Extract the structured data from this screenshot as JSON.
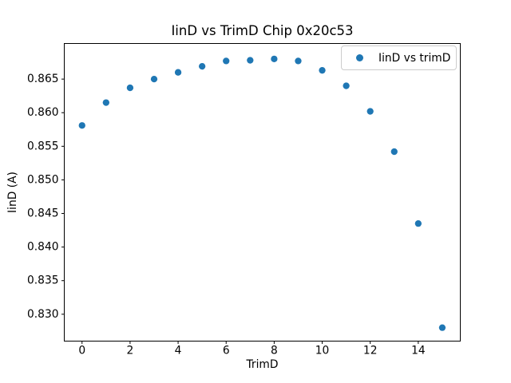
{
  "figure": {
    "background": "#ffffff",
    "axis_color": "#000000",
    "tick_label_color": "#000000"
  },
  "chart_data": {
    "type": "scatter",
    "title": "IinD vs TrimD Chip 0x20c53",
    "xlabel": "TrimD",
    "ylabel": "IinD (A)",
    "legend": {
      "label": "IinD vs trimD",
      "position": "upper right",
      "marker": "circle-icon",
      "marker_color": "#1f77b4"
    },
    "series": [
      {
        "name": "IinD vs trimD",
        "color": "#1f77b4",
        "marker": "circle",
        "x": [
          0,
          1,
          2,
          3,
          4,
          5,
          6,
          7,
          8,
          9,
          10,
          11,
          12,
          13,
          14,
          15
        ],
        "y": [
          0.8581,
          0.8615,
          0.8637,
          0.865,
          0.866,
          0.8669,
          0.8677,
          0.8678,
          0.868,
          0.8677,
          0.8663,
          0.864,
          0.8602,
          0.8542,
          0.8435,
          0.828
        ]
      }
    ],
    "xlim": [
      -0.74,
      15.75
    ],
    "ylim": [
      0.826,
      0.8703
    ],
    "xticks": {
      "values": [
        0,
        2,
        4,
        6,
        8,
        10,
        12,
        14
      ],
      "labels": [
        "0",
        "2",
        "4",
        "6",
        "8",
        "10",
        "12",
        "14"
      ]
    },
    "yticks": {
      "values": [
        0.83,
        0.835,
        0.84,
        0.845,
        0.85,
        0.855,
        0.86,
        0.865
      ],
      "labels": [
        "0.830",
        "0.835",
        "0.840",
        "0.845",
        "0.850",
        "0.855",
        "0.860",
        "0.865"
      ]
    },
    "grid": false
  }
}
